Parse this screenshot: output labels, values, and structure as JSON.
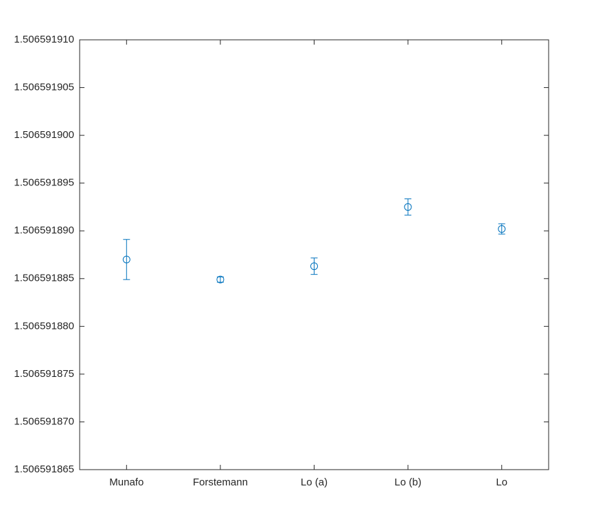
{
  "chart_data": {
    "type": "errorbar",
    "categories": [
      "Munafo",
      "Forstemann",
      "Lo (a)",
      "Lo (b)",
      "Lo"
    ],
    "values": [
      1.506591887,
      1.5065918849,
      1.5065918863,
      1.5065918925,
      1.5065918902
    ],
    "errors": [
      2.1e-09,
      2.8e-10,
      8.6e-10,
      8.5e-10,
      5.4e-10
    ],
    "color": "#0072bd",
    "ylim": [
      1.506591865,
      1.50659191
    ],
    "yticks": [
      1.506591865,
      {
        "value": 1.50659187,
        "label": "1.506591870"
      },
      1.506591875,
      {
        "value": 1.50659188,
        "label": "1.506591880"
      },
      1.506591885,
      {
        "value": 1.50659189,
        "label": "1.506591890"
      },
      1.506591895,
      {
        "value": 1.5065919,
        "label": "1.506591900"
      },
      1.506591905,
      {
        "value": 1.50659191,
        "label": "1.506591910"
      }
    ]
  }
}
